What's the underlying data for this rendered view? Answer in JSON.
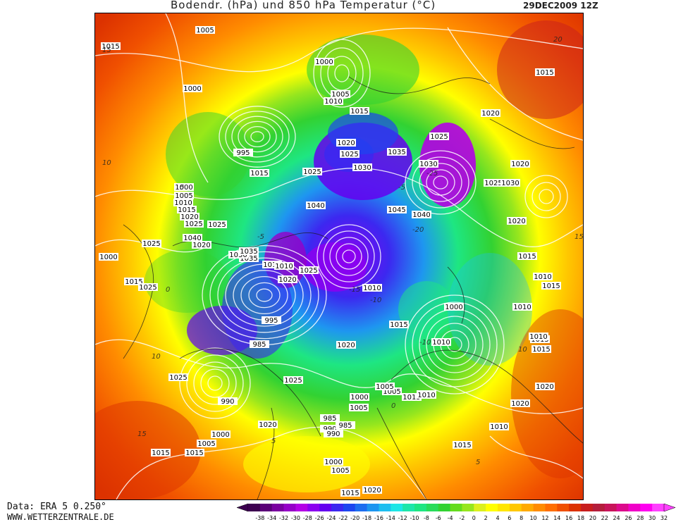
{
  "header": {
    "title": "Bodendr. (hPa) und 850 hPa Temperatur (°C)",
    "date": "29DEC2009 12Z"
  },
  "footer": {
    "data_source": "Data: ERA 5 0.250°",
    "site": "WWW.WETTERZENTRALE.DE"
  },
  "legend": {
    "ticks": [
      "-38",
      "-34",
      "-32",
      "-30",
      "-28",
      "-26",
      "-24",
      "-22",
      "-20",
      "-18",
      "-16",
      "-14",
      "-12",
      "-10",
      "-8",
      "-6",
      "-4",
      "-2",
      "0",
      "2",
      "4",
      "6",
      "8",
      "10",
      "12",
      "14",
      "16",
      "18",
      "20",
      "22",
      "24",
      "26",
      "28",
      "30",
      "32"
    ],
    "colors": [
      "#3c0050",
      "#5a0078",
      "#7a00a0",
      "#9600c8",
      "#b400e6",
      "#8c00f0",
      "#6400f0",
      "#3c28f0",
      "#1e46f0",
      "#1e6ef0",
      "#1e96f0",
      "#1ebef0",
      "#1ee6e6",
      "#1ee6aa",
      "#1ee682",
      "#28dc5a",
      "#32d232",
      "#64dc1e",
      "#96e61e",
      "#dcf01e",
      "#ffff00",
      "#ffe600",
      "#ffc800",
      "#ffaa00",
      "#ff8c00",
      "#ff6e00",
      "#f05000",
      "#dc3200",
      "#c81e1e",
      "#b41e3c",
      "#c8145a",
      "#dc0a8c",
      "#f000c8",
      "#ff00f0",
      "#ff40ff"
    ]
  },
  "map": {
    "pressure_labels": [
      "1005",
      "1015",
      "1000",
      "1000",
      "1005",
      "1010",
      "1015",
      "1015",
      "1020",
      "1025",
      "1020",
      "1025",
      "1030",
      "995",
      "1035",
      "1030",
      "1030",
      "1015",
      "1025",
      "1040",
      "1045",
      "1040",
      "1000",
      "1005",
      "1010",
      "1015",
      "1020",
      "1025",
      "1040",
      "1035",
      "1030",
      "1020",
      "1025",
      "1000",
      "1015",
      "1025",
      "1035",
      "1025",
      "1015",
      "1010",
      "1020",
      "1025",
      "1010",
      "1015",
      "1000",
      "1010",
      "1015",
      "1010",
      "1020",
      "1025",
      "1030",
      "1020",
      "1015",
      "995",
      "985",
      "1020",
      "1025",
      "1005",
      "1005",
      "1000",
      "1010",
      "1015",
      "1005",
      "985",
      "990",
      "1020",
      "1025",
      "990",
      "1000",
      "1005",
      "1015",
      "1015",
      "1010",
      "985",
      "990",
      "1000",
      "1005",
      "1015",
      "1020",
      "1015",
      "1010",
      "1020",
      "1015",
      "1010",
      "1020",
      "1015",
      "1010"
    ],
    "temperature_labels": [
      "15",
      "10",
      "5",
      "0",
      "-5",
      "-10",
      "-15",
      "-20",
      "-25",
      "15",
      "10",
      "5",
      "0",
      "-5",
      "-10",
      "5",
      "10",
      "15",
      "20"
    ]
  }
}
